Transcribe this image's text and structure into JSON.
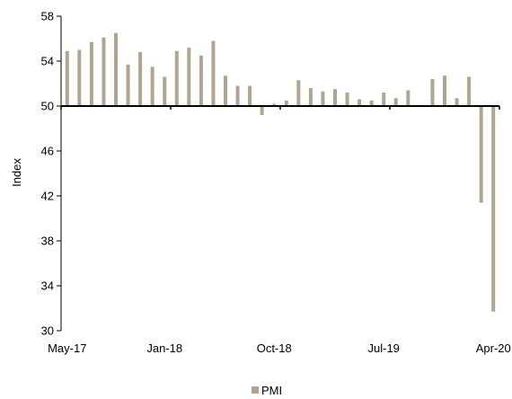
{
  "chart_data": {
    "type": "bar",
    "ylabel": "Index",
    "ylim": [
      30,
      58
    ],
    "y_ticks": [
      30,
      34,
      38,
      42,
      46,
      50,
      54,
      58
    ],
    "y_tick_labels": [
      "30",
      "34",
      "38",
      "42",
      "46",
      "50",
      "54",
      "58"
    ],
    "baseline": 50,
    "x_tick_labels": [
      "May-17",
      "Jan-18",
      "Oct-18",
      "Jul-19",
      "Apr-20"
    ],
    "categories": [
      "May-17",
      "Jun-17",
      "Jul-17",
      "Aug-17",
      "Sep-17",
      "Oct-17",
      "Nov-17",
      "Dec-17",
      "Jan-18",
      "Feb-18",
      "Mar-18",
      "Apr-18",
      "May-18",
      "Jun-18",
      "Jul-18",
      "Aug-18",
      "Sep-18",
      "Oct-18",
      "Nov-18",
      "Dec-18",
      "Jan-19",
      "Feb-19",
      "Mar-19",
      "Apr-19",
      "May-19",
      "Jun-19",
      "Jul-19",
      "Aug-19",
      "Sep-19",
      "Oct-19",
      "Nov-19",
      "Dec-19",
      "Jan-20",
      "Feb-20",
      "Mar-20",
      "Apr-20"
    ],
    "series": [
      {
        "name": "PMI",
        "color": "#b0a590",
        "values": [
          54.9,
          55.0,
          55.7,
          56.1,
          56.5,
          53.7,
          54.8,
          53.5,
          52.6,
          54.9,
          55.2,
          54.5,
          55.8,
          52.7,
          51.8,
          51.8,
          49.2,
          50.2,
          50.5,
          52.3,
          51.6,
          51.3,
          51.5,
          51.2,
          50.6,
          50.5,
          51.2,
          50.7,
          51.4,
          50.0,
          52.4,
          52.7,
          50.7,
          52.6,
          41.4,
          31.7
        ]
      }
    ],
    "legend": {
      "position": "bottom",
      "entries": [
        "PMI"
      ]
    },
    "grid": false
  }
}
